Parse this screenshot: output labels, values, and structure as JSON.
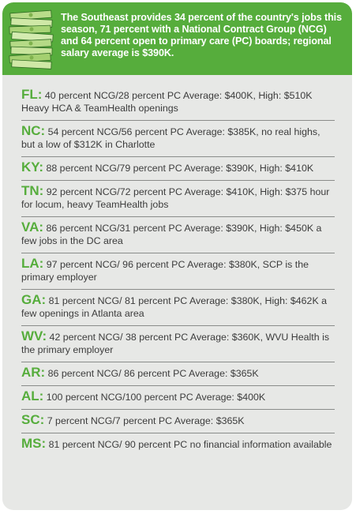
{
  "header": {
    "text": "The Southeast provides 34 percent of the country's jobs this season, 71 percent with a National Contract Group (NCG) and 64 percent open to primary care (PC) boards; regional salary average is $390K."
  },
  "colors": {
    "accent": "#56ad3c",
    "panel": "#e7e8e6",
    "text": "#3c3c3c"
  },
  "states": [
    {
      "abbr": "FL:",
      "text": " 40 percent NCG/28 percent PC Average: $400K, High: $510K Heavy HCA & TeamHealth openings"
    },
    {
      "abbr": "NC:",
      "text": " 54 percent NCG/56 percent PC Average: $385K, no real highs, but a low of $312K in Charlotte"
    },
    {
      "abbr": "KY:",
      "text": " 88 percent NCG/79 percent PC Average: $390K, High: $410K"
    },
    {
      "abbr": "TN:",
      "text": " 92 percent NCG/72 percent PC Average: $410K, High: $375 hour for locum, heavy TeamHealth jobs"
    },
    {
      "abbr": "VA:",
      "text": " 86 percent NCG/31 percent PC Average: $390K, High: $450K a few jobs in the DC area"
    },
    {
      "abbr": "LA:",
      "text": " 97 percent NCG/ 96 percent PC Average: $380K, SCP is the primary employer"
    },
    {
      "abbr": "GA:",
      "text": " 81 percent NCG/ 81 percent PC Average: $380K, High: $462K a few openings in Atlanta area"
    },
    {
      "abbr": "WV:",
      "text": " 42 percent NCG/ 38 percent PC Average: $360K, WVU Health is the primary employer"
    },
    {
      "abbr": "AR:",
      "text": " 86 percent NCG/ 86 percent PC Average: $365K"
    },
    {
      "abbr": "AL:",
      "text": " 100 percent NCG/100 percent PC Average: $400K"
    },
    {
      "abbr": "SC:",
      "text": " 7 percent NCG/7 percent PC Average: $365K"
    },
    {
      "abbr": "MS:",
      "text": " 81 percent NCG/ 90 percent PC no financial information available"
    }
  ]
}
